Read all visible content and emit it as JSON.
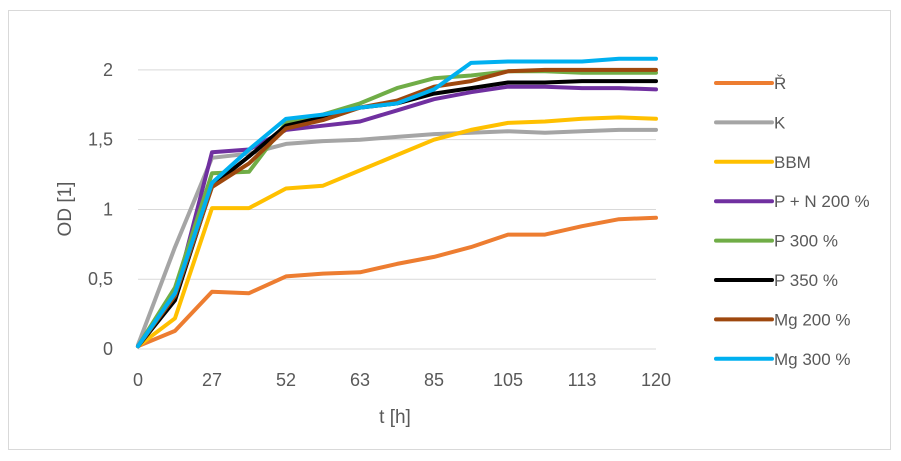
{
  "chart_data": {
    "type": "line",
    "xlabel": "t [h]",
    "ylabel": "OD [1]",
    "ylim": [
      0,
      2.2
    ],
    "yticks": [
      0,
      0.5,
      1,
      1.5,
      2
    ],
    "ytick_labels": [
      "0",
      "0,5",
      "1",
      "1,5",
      "2"
    ],
    "x_categories": [
      "0",
      "",
      "27",
      "",
      "52",
      "",
      "63",
      "",
      "85",
      "",
      "105",
      "",
      "113",
      "",
      "120"
    ],
    "legend_position": "right",
    "gridlines": "horizontal",
    "series": [
      {
        "name": "Ř",
        "color": "#ED7D31",
        "values": [
          0.02,
          0.13,
          0.41,
          0.4,
          0.52,
          0.54,
          0.55,
          0.61,
          0.66,
          0.73,
          0.82,
          0.82,
          0.88,
          0.93,
          0.94
        ]
      },
      {
        "name": "K",
        "color": "#A5A5A5",
        "values": [
          0.03,
          0.73,
          1.37,
          1.4,
          1.47,
          1.49,
          1.5,
          1.52,
          1.54,
          1.55,
          1.56,
          1.55,
          1.56,
          1.57,
          1.57
        ]
      },
      {
        "name": "BBM",
        "color": "#FFC000",
        "values": [
          0.02,
          0.22,
          1.01,
          1.01,
          1.15,
          1.17,
          1.28,
          1.39,
          1.5,
          1.57,
          1.62,
          1.63,
          1.65,
          1.66,
          1.65
        ]
      },
      {
        "name": "P + N 200 %",
        "color": "#7030A0",
        "values": [
          0.02,
          0.38,
          1.41,
          1.43,
          1.57,
          1.6,
          1.63,
          1.71,
          1.79,
          1.84,
          1.88,
          1.88,
          1.87,
          1.87,
          1.86
        ]
      },
      {
        "name": "P 300 %",
        "color": "#70AD47",
        "values": [
          0.02,
          0.44,
          1.26,
          1.27,
          1.62,
          1.68,
          1.76,
          1.87,
          1.94,
          1.96,
          1.99,
          1.99,
          1.98,
          1.98,
          1.98
        ]
      },
      {
        "name": "P 350 %",
        "color": "#000000",
        "values": [
          0.02,
          0.35,
          1.17,
          1.38,
          1.6,
          1.66,
          1.73,
          1.76,
          1.83,
          1.87,
          1.91,
          1.91,
          1.92,
          1.92,
          1.92
        ]
      },
      {
        "name": "Mg 200 %",
        "color": "#9E480E",
        "values": [
          0.02,
          0.38,
          1.16,
          1.33,
          1.58,
          1.64,
          1.73,
          1.78,
          1.88,
          1.92,
          1.99,
          2.0,
          2.0,
          2.0,
          2.0
        ]
      },
      {
        "name": "Mg 300 %",
        "color": "#00B0F0",
        "values": [
          0.02,
          0.4,
          1.19,
          1.43,
          1.65,
          1.68,
          1.73,
          1.76,
          1.86,
          2.05,
          2.06,
          2.06,
          2.06,
          2.08,
          2.08
        ]
      }
    ]
  }
}
